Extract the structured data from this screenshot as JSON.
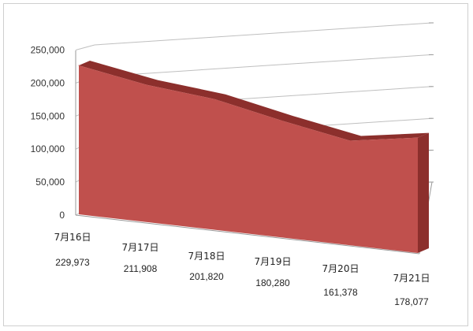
{
  "chart_data": {
    "type": "area",
    "categories": [
      "7月16日",
      "7月17日",
      "7月18日",
      "7月19日",
      "7月20日",
      "7月21日"
    ],
    "values": [
      229973,
      211908,
      201820,
      180280,
      161378,
      178077
    ],
    "data_labels": [
      "229,973",
      "211,908",
      "201,820",
      "180,280",
      "161,378",
      "178,077"
    ],
    "y_ticks": [
      "0",
      "50,000",
      "100,000",
      "150,000",
      "200,000",
      "250,000"
    ],
    "ylim": [
      0,
      250000
    ],
    "grid": true,
    "legend": "none",
    "style": "3d",
    "colors": {
      "front": "#c0504d",
      "edge": "#8c2f2c"
    }
  }
}
